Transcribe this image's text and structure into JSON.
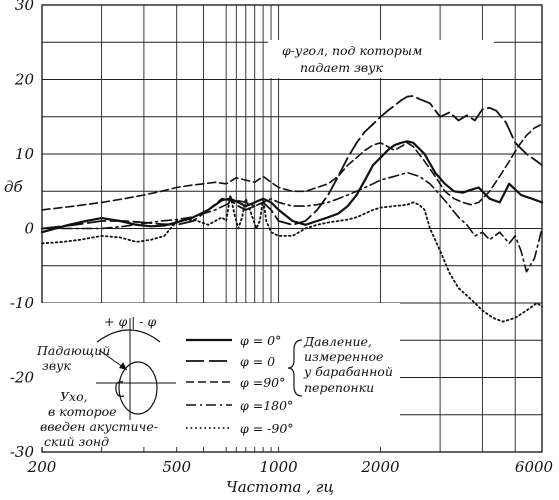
{
  "chart_data": {
    "type": "line",
    "title": "",
    "xlabel": "Частота , гц",
    "ylabel": "дб",
    "xscale": "log",
    "xlim": [
      200,
      6000
    ],
    "ylim": [
      -30,
      30
    ],
    "x_tick_labels": [
      "200",
      "500",
      "1000",
      "2000",
      "6000"
    ],
    "x_ticks": [
      200,
      500,
      1000,
      2000,
      6000
    ],
    "y_ticks": [
      30,
      20,
      10,
      0,
      -10,
      -20,
      -30
    ],
    "y_tick_labels": [
      "30",
      "20",
      "10",
      "0",
      "-10",
      "-20",
      "-30"
    ],
    "grid": true,
    "annotation": {
      "line1": "φ-угол, под которым",
      "line2": "падает звук"
    },
    "legend": {
      "placement": "bottom-left",
      "entries": [
        {
          "label": "φ = 0°",
          "style": "solid"
        },
        {
          "label": "φ = 0",
          "style": "long-dash"
        },
        {
          "label": "φ =90°",
          "style": "dash"
        },
        {
          "label": "φ =180°",
          "style": "dash-dot"
        },
        {
          "label": "φ = -90°",
          "style": "dot"
        }
      ],
      "note_lines": [
        "Давление,",
        "измеренное",
        "у барабанной",
        "перепонки"
      ]
    },
    "inset": {
      "angle_label": "+ φ | - φ",
      "incident_label": [
        "Падающий",
        "звук"
      ],
      "ear_label": [
        "Ухо,",
        "в которое",
        "введен акустиче-",
        "ский зонд"
      ]
    },
    "series": [
      {
        "name": "φ = 0°",
        "style": "solid",
        "x": [
          200,
          240,
          270,
          300,
          340,
          380,
          420,
          460,
          500,
          560,
          620,
          680,
          720,
          760,
          800,
          850,
          900,
          950,
          1000,
          1100,
          1200,
          1300,
          1400,
          1500,
          1600,
          1700,
          1800,
          1900,
          2000,
          2100,
          2200,
          2300,
          2400,
          2500,
          2700,
          2900,
          3100,
          3300,
          3500,
          3700,
          3900,
          4200,
          4500,
          4800,
          5200,
          5600,
          6000
        ],
        "values": [
          -0.5,
          0.5,
          1.0,
          1.4,
          1.0,
          0.5,
          0.3,
          0.4,
          0.8,
          1.5,
          2.5,
          3.8,
          4.0,
          3.5,
          3.0,
          3.5,
          4.0,
          3.5,
          2.5,
          1.0,
          0.5,
          1.0,
          1.5,
          2.0,
          3.0,
          4.5,
          6.5,
          8.5,
          9.5,
          10.5,
          11.2,
          11.5,
          11.7,
          11.5,
          10.0,
          7.5,
          6.0,
          5.0,
          4.8,
          5.2,
          5.5,
          4.0,
          3.5,
          6.0,
          4.5,
          4.0,
          3.5
        ]
      },
      {
        "name": "φ = 0",
        "style": "long-dash",
        "x": [
          200,
          250,
          300,
          350,
          400,
          450,
          500,
          560,
          620,
          680,
          720,
          760,
          800,
          850,
          900,
          950,
          1000,
          1100,
          1200,
          1300,
          1400,
          1500,
          1600,
          1700,
          1800,
          1900,
          2000,
          2100,
          2200,
          2300,
          2400,
          2500,
          2600,
          2800,
          3000,
          3200,
          3400,
          3600,
          3800,
          4000,
          4200,
          4400,
          4700,
          5000,
          5400,
          5800,
          6000
        ],
        "values": [
          0.0,
          0.5,
          1.0,
          1.0,
          0.8,
          0.6,
          0.5,
          1.0,
          2.5,
          4.0,
          3.8,
          3.0,
          2.5,
          3.0,
          3.5,
          2.5,
          1.0,
          0.5,
          1.0,
          2.5,
          4.5,
          7.0,
          9.5,
          11.5,
          13.0,
          14.0,
          15.0,
          15.8,
          16.5,
          17.2,
          17.7,
          17.8,
          17.4,
          16.8,
          15.0,
          15.6,
          14.5,
          15.2,
          14.5,
          16.0,
          16.2,
          15.8,
          14.2,
          11.5,
          10.0,
          9.0,
          8.5
        ]
      },
      {
        "name": "φ =90°",
        "style": "dash",
        "x": [
          200,
          250,
          300,
          350,
          400,
          450,
          500,
          550,
          600,
          650,
          700,
          750,
          800,
          850,
          900,
          950,
          1000,
          1100,
          1200,
          1300,
          1400,
          1500,
          1600,
          1700,
          1800,
          1900,
          2000,
          2100,
          2200,
          2300,
          2400,
          2500,
          2700,
          2900,
          3100,
          3300,
          3500,
          3700,
          3900,
          4200,
          4500,
          4800,
          5100,
          5400,
          5700,
          6000
        ],
        "values": [
          2.5,
          3.0,
          3.5,
          4.0,
          4.5,
          5.0,
          5.5,
          5.8,
          6.0,
          6.2,
          6.0,
          6.8,
          6.5,
          6.2,
          7.0,
          6.2,
          5.5,
          5.0,
          5.0,
          5.5,
          6.0,
          7.0,
          8.5,
          9.5,
          10.5,
          11.2,
          11.5,
          11.0,
          10.5,
          11.0,
          11.5,
          11.0,
          9.0,
          7.0,
          5.0,
          4.0,
          3.5,
          3.2,
          3.5,
          5.0,
          7.0,
          9.0,
          11.0,
          12.5,
          13.5,
          14.0
        ]
      },
      {
        "name": "φ =180°",
        "style": "dash-dot",
        "x": [
          200,
          250,
          300,
          350,
          400,
          450,
          500,
          550,
          600,
          650,
          700,
          750,
          800,
          850,
          900,
          950,
          1000,
          1100,
          1200,
          1300,
          1400,
          1500,
          1600,
          1700,
          1800,
          1900,
          2000,
          2200,
          2400,
          2600,
          2800,
          3000,
          3200,
          3400,
          3600,
          3800,
          4000,
          4200,
          4500,
          4800,
          5000,
          5200,
          5400,
          5700,
          6000
        ],
        "values": [
          0.0,
          0.0,
          0.0,
          0.3,
          0.7,
          1.0,
          1.2,
          1.5,
          2.0,
          2.5,
          3.2,
          3.8,
          3.5,
          3.0,
          3.5,
          4.0,
          3.5,
          3.0,
          3.0,
          3.2,
          3.5,
          4.0,
          4.5,
          5.0,
          5.5,
          6.0,
          6.5,
          7.0,
          7.5,
          7.0,
          6.0,
          4.5,
          3.0,
          1.5,
          0.5,
          -1.0,
          -0.5,
          -1.5,
          -0.5,
          -2.0,
          -1.0,
          -3.0,
          -5.8,
          -4.0,
          0.0
        ]
      },
      {
        "name": "φ = -90°",
        "style": "dot",
        "x": [
          200,
          230,
          260,
          300,
          340,
          380,
          420,
          460,
          500,
          560,
          620,
          680,
          700,
          720,
          740,
          760,
          780,
          800,
          830,
          860,
          880,
          900,
          920,
          950,
          1000,
          1100,
          1200,
          1300,
          1400,
          1500,
          1600,
          1700,
          1800,
          1900,
          2000,
          2200,
          2400,
          2500,
          2600,
          2700,
          2800,
          3000,
          3200,
          3400,
          3600,
          3800,
          4000,
          4300,
          4600,
          5000,
          5400,
          5800,
          6000
        ],
        "values": [
          -2.0,
          -1.8,
          -1.5,
          -1.0,
          -1.2,
          -1.8,
          -1.5,
          -1.0,
          1.0,
          1.2,
          0.5,
          1.5,
          1.0,
          4.5,
          2.0,
          0.0,
          1.5,
          4.0,
          2.0,
          0.0,
          1.0,
          4.0,
          1.0,
          -0.5,
          -1.0,
          -1.0,
          0.0,
          0.5,
          0.8,
          1.0,
          1.2,
          1.5,
          2.0,
          2.5,
          2.8,
          3.0,
          3.2,
          3.5,
          3.2,
          2.5,
          0.0,
          -3.0,
          -6.0,
          -8.0,
          -9.0,
          -10.0,
          -11.0,
          -12.0,
          -12.5,
          -12.0,
          -11.0,
          -10.0,
          -10.5
        ]
      }
    ]
  }
}
